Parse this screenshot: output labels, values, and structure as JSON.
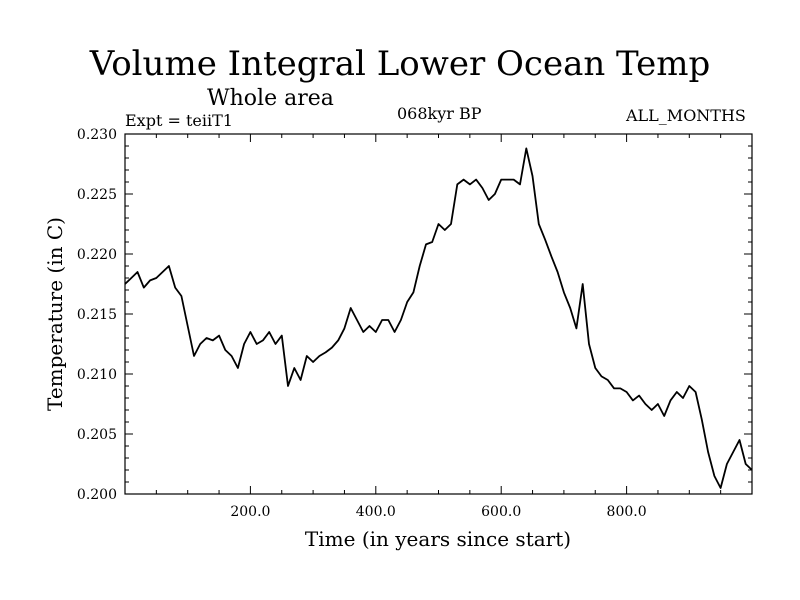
{
  "header": {
    "title": "Volume Integral Lower Ocean Temp",
    "subtitle": "Whole area",
    "experiment": "Expt = teiiT1",
    "period": "068kyr BP",
    "months": "ALL_MONTHS"
  },
  "chart_data": {
    "type": "line",
    "title": "Volume Integral Lower Ocean Temp",
    "xlabel": "Time (in years since start)",
    "ylabel": "Temperature (in C)",
    "xlim": [
      0,
      1000
    ],
    "ylim": [
      0.2,
      0.23
    ],
    "xticks": [
      200,
      400,
      600,
      800
    ],
    "xtick_labels": [
      "200.0",
      "400.0",
      "600.0",
      "800.0"
    ],
    "yticks": [
      0.2,
      0.205,
      0.21,
      0.215,
      0.22,
      0.225,
      0.23
    ],
    "ytick_labels": [
      "0.200",
      "0.205",
      "0.210",
      "0.215",
      "0.220",
      "0.225",
      "0.230"
    ],
    "grid": false,
    "series": [
      {
        "x": [
          0,
          10,
          20,
          30,
          40,
          50,
          60,
          70,
          80,
          90,
          100,
          110,
          120,
          130,
          140,
          150,
          160,
          170,
          180,
          190,
          200,
          210,
          220,
          230,
          240,
          250,
          260,
          270,
          280,
          290,
          300,
          310,
          320,
          330,
          340,
          350,
          360,
          370,
          380,
          390,
          400,
          410,
          420,
          430,
          440,
          450,
          460,
          470,
          480,
          490,
          500,
          510,
          520,
          530,
          540,
          550,
          560,
          570,
          580,
          590,
          600,
          610,
          620,
          630,
          640,
          650,
          660,
          670,
          680,
          690,
          700,
          710,
          720,
          730,
          740,
          750,
          760,
          770,
          780,
          790,
          800,
          810,
          820,
          830,
          840,
          850,
          860,
          870,
          880,
          890,
          900,
          910,
          920,
          930,
          940,
          950,
          960,
          970,
          980,
          990,
          1000
        ],
        "values": [
          0.2175,
          0.218,
          0.2185,
          0.2172,
          0.2178,
          0.218,
          0.2185,
          0.219,
          0.2172,
          0.2165,
          0.214,
          0.2115,
          0.2125,
          0.213,
          0.2128,
          0.2132,
          0.212,
          0.2115,
          0.2105,
          0.2125,
          0.2135,
          0.2125,
          0.2128,
          0.2135,
          0.2125,
          0.2132,
          0.209,
          0.2105,
          0.2095,
          0.2115,
          0.211,
          0.2115,
          0.2118,
          0.2122,
          0.2128,
          0.2138,
          0.2155,
          0.2145,
          0.2135,
          0.214,
          0.2135,
          0.2145,
          0.2145,
          0.2135,
          0.2145,
          0.216,
          0.2168,
          0.219,
          0.2208,
          0.221,
          0.2225,
          0.222,
          0.2225,
          0.2258,
          0.2262,
          0.2258,
          0.2262,
          0.2255,
          0.2245,
          0.225,
          0.2262,
          0.2262,
          0.2262,
          0.2258,
          0.2288,
          0.2265,
          0.2225,
          0.2212,
          0.2198,
          0.2185,
          0.2168,
          0.2155,
          0.2138,
          0.2175,
          0.2125,
          0.2105,
          0.2098,
          0.2095,
          0.2088,
          0.2088,
          0.2085,
          0.2078,
          0.2082,
          0.2075,
          0.207,
          0.2075,
          0.2065,
          0.2078,
          0.2085,
          0.208,
          0.209,
          0.2085,
          0.2062,
          0.2035,
          0.2015,
          0.2005,
          0.2025,
          0.2035,
          0.2045,
          0.2025,
          0.202
        ]
      }
    ]
  }
}
